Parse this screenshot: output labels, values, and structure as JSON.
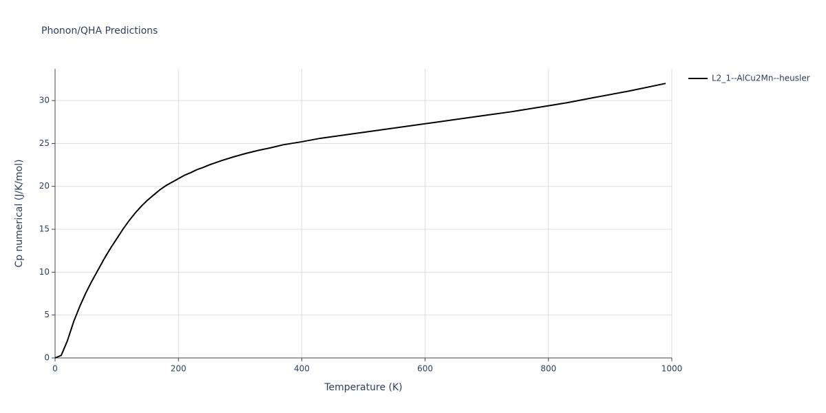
{
  "chart_data": {
    "type": "line",
    "title": "Phonon/QHA Predictions",
    "x_label": "Temperature (K)",
    "y_label": "Cp numerical (J/K/mol)",
    "x": [
      0,
      10,
      20,
      30,
      40,
      50,
      60,
      70,
      80,
      90,
      100,
      110,
      120,
      130,
      140,
      150,
      160,
      170,
      180,
      190,
      200,
      210,
      220,
      230,
      240,
      250,
      270,
      290,
      310,
      330,
      350,
      370,
      400,
      430,
      470,
      500,
      550,
      600,
      650,
      700,
      740,
      800,
      830,
      870,
      930,
      990
    ],
    "series": [
      {
        "name": "L2_1--AlCu2Mn--heusler",
        "color": "#000000",
        "values": [
          0,
          0.3,
          2.0,
          4.2,
          6.0,
          7.6,
          9.0,
          10.3,
          11.6,
          12.8,
          13.9,
          15.0,
          16.0,
          16.9,
          17.7,
          18.4,
          19.0,
          19.6,
          20.1,
          20.5,
          20.9,
          21.3,
          21.6,
          21.95,
          22.2,
          22.5,
          23.0,
          23.45,
          23.85,
          24.2,
          24.5,
          24.85,
          25.2,
          25.6,
          26.0,
          26.3,
          26.8,
          27.3,
          27.8,
          28.3,
          28.7,
          29.4,
          29.75,
          30.3,
          31.1,
          32.0
        ]
      }
    ],
    "xlim": [
      0,
      1000
    ],
    "xticks": [
      0,
      200,
      400,
      600,
      800,
      1000
    ],
    "ylim": [
      0,
      33.7
    ],
    "yticks": [
      0,
      5,
      10,
      15,
      20,
      25,
      30
    ],
    "grid": true,
    "legend": "right"
  }
}
